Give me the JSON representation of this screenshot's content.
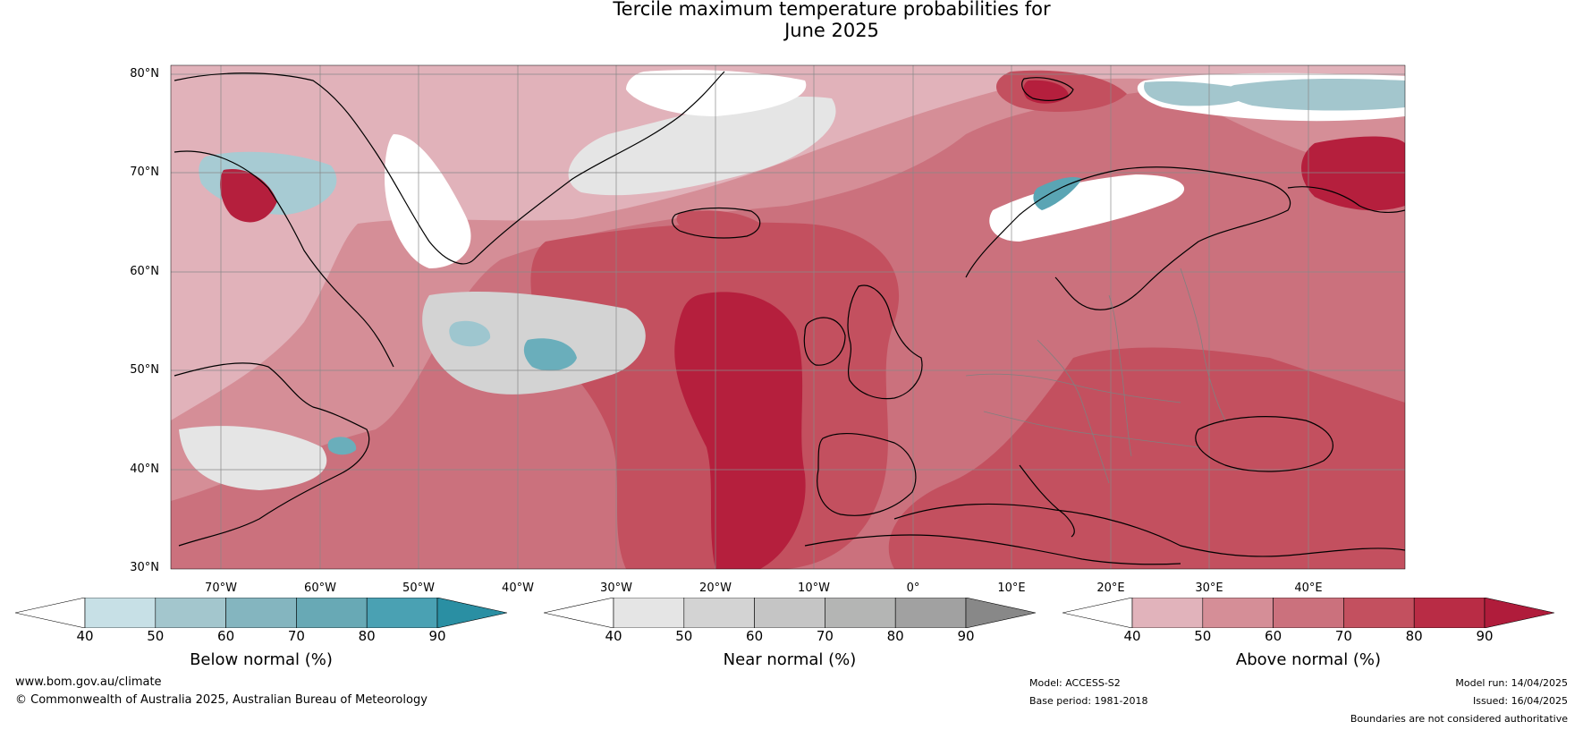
{
  "title": {
    "line1": "Tercile maximum temperature probabilities for",
    "line2": "June 2025"
  },
  "map": {
    "region": "North Atlantic and Europe",
    "lat_labels": [
      "80°N",
      "70°N",
      "60°N",
      "50°N",
      "40°N",
      "30°N"
    ],
    "lon_labels": [
      "70°W",
      "60°W",
      "50°W",
      "40°W",
      "30°W",
      "20°W",
      "10°W",
      "0°",
      "10°E",
      "20°E",
      "30°E",
      "40°E"
    ],
    "colors": {
      "above_strong": "#b51f3d",
      "above_mid": "#cd6d7b",
      "above_light": "#e1b2ba",
      "below": "#5aa5b4",
      "below_light": "#c5dfe5",
      "near": "#d3d3d3",
      "coast": "#000000",
      "border": "#808080",
      "grid": "#888888"
    }
  },
  "colorbars": [
    {
      "title": "Below normal (%)",
      "ticks": [
        "40",
        "50",
        "60",
        "70",
        "80",
        "90"
      ],
      "colors": [
        "#ffffff",
        "#c7e0e6",
        "#a3c6cd",
        "#84b5bf",
        "#68a9b5",
        "#4aa1b3",
        "#2a8fa3"
      ]
    },
    {
      "title": "Near normal (%)",
      "ticks": [
        "40",
        "50",
        "60",
        "70",
        "80",
        "90"
      ],
      "colors": [
        "#ffffff",
        "#e5e5e5",
        "#d3d3d3",
        "#c5c5c5",
        "#b4b5b4",
        "#a1a1a1",
        "#888888"
      ]
    },
    {
      "title": "Above normal (%)",
      "ticks": [
        "40",
        "50",
        "60",
        "70",
        "80",
        "90"
      ],
      "colors": [
        "#ffffff",
        "#e1b3bb",
        "#d58e97",
        "#cb717d",
        "#c3505f",
        "#b92c45",
        "#b01c3b"
      ]
    }
  ],
  "footer": {
    "website": "www.bom.gov.au/climate",
    "copyright": "© Commonwealth of Australia 2025, Australian Bureau of Meteorology",
    "model": "Model: ACCESS-S2",
    "base_period": "Base period: 1981-2018",
    "model_run": "Model run: 14/04/2025",
    "issued": "Issued: 16/04/2025",
    "disclaimer": "Boundaries are not considered authoritative"
  }
}
